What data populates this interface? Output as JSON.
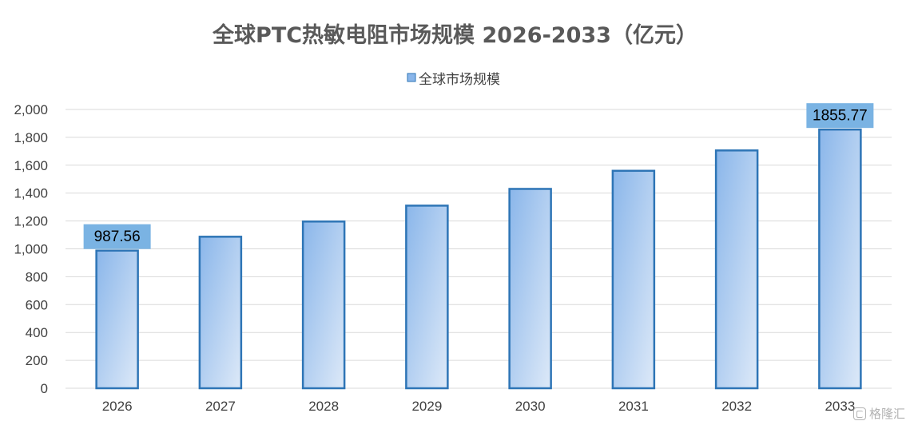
{
  "chart_data": {
    "type": "bar",
    "title": "全球PTC热敏电阻市场规模 2026-2033（亿元）",
    "categories": [
      "2026",
      "2027",
      "2028",
      "2029",
      "2030",
      "2031",
      "2032",
      "2033"
    ],
    "series": [
      {
        "name": "全球市场规模",
        "values": [
          987.56,
          1087,
          1196,
          1310,
          1430,
          1560,
          1706,
          1855.77
        ]
      }
    ],
    "data_labels": [
      {
        "category": "2026",
        "text": "987.56"
      },
      {
        "category": "2033",
        "text": "1855.77"
      }
    ],
    "y_ticks": [
      "0",
      "200",
      "400",
      "600",
      "800",
      "1,000",
      "1,200",
      "1,400",
      "1,600",
      "1,800",
      "2,000"
    ],
    "ylim": [
      0,
      2000
    ],
    "grid": true,
    "legend_position": "top",
    "colors": {
      "bar_fill_start": "#8ab6ea",
      "bar_fill_end": "#dde9f8",
      "bar_stroke": "#2e75b6",
      "label_bg": "#7ab3e3",
      "grid": "#d9d9d9",
      "title": "#595959",
      "axis_text": "#404040"
    }
  },
  "watermark": {
    "text": "格隆汇",
    "icon": "gelonghui-logo-icon"
  }
}
